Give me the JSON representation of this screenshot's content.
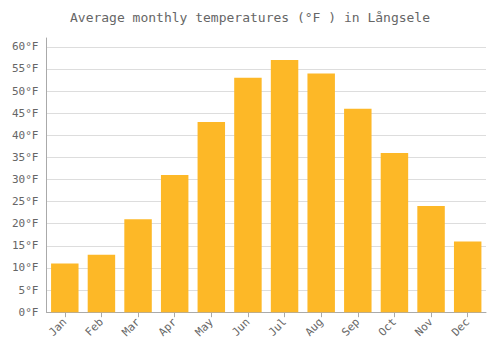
{
  "chart_data": {
    "type": "bar",
    "title": "Average monthly temperatures (°F ) in Långsele",
    "categories": [
      "Jan",
      "Feb",
      "Mar",
      "Apr",
      "May",
      "Jun",
      "Jul",
      "Aug",
      "Sep",
      "Oct",
      "Nov",
      "Dec"
    ],
    "values": [
      11,
      13,
      21,
      31,
      43,
      53,
      57,
      54,
      46,
      36,
      24,
      16
    ],
    "color": "#FDB827",
    "ylim": [
      0,
      62
    ],
    "yticks": [
      {
        "value": 0,
        "label": "0°F"
      },
      {
        "value": 5,
        "label": "5°F"
      },
      {
        "value": 10,
        "label": "10°F"
      },
      {
        "value": 15,
        "label": "15°F"
      },
      {
        "value": 20,
        "label": "20°F"
      },
      {
        "value": 25,
        "label": "25°F"
      },
      {
        "value": 30,
        "label": "30°F"
      },
      {
        "value": 35,
        "label": "35°F"
      },
      {
        "value": 40,
        "label": "40°F"
      },
      {
        "value": 45,
        "label": "45°F"
      },
      {
        "value": 50,
        "label": "50°F"
      },
      {
        "value": 55,
        "label": "55°F"
      },
      {
        "value": 60,
        "label": "60°F"
      }
    ],
    "grid": true
  }
}
